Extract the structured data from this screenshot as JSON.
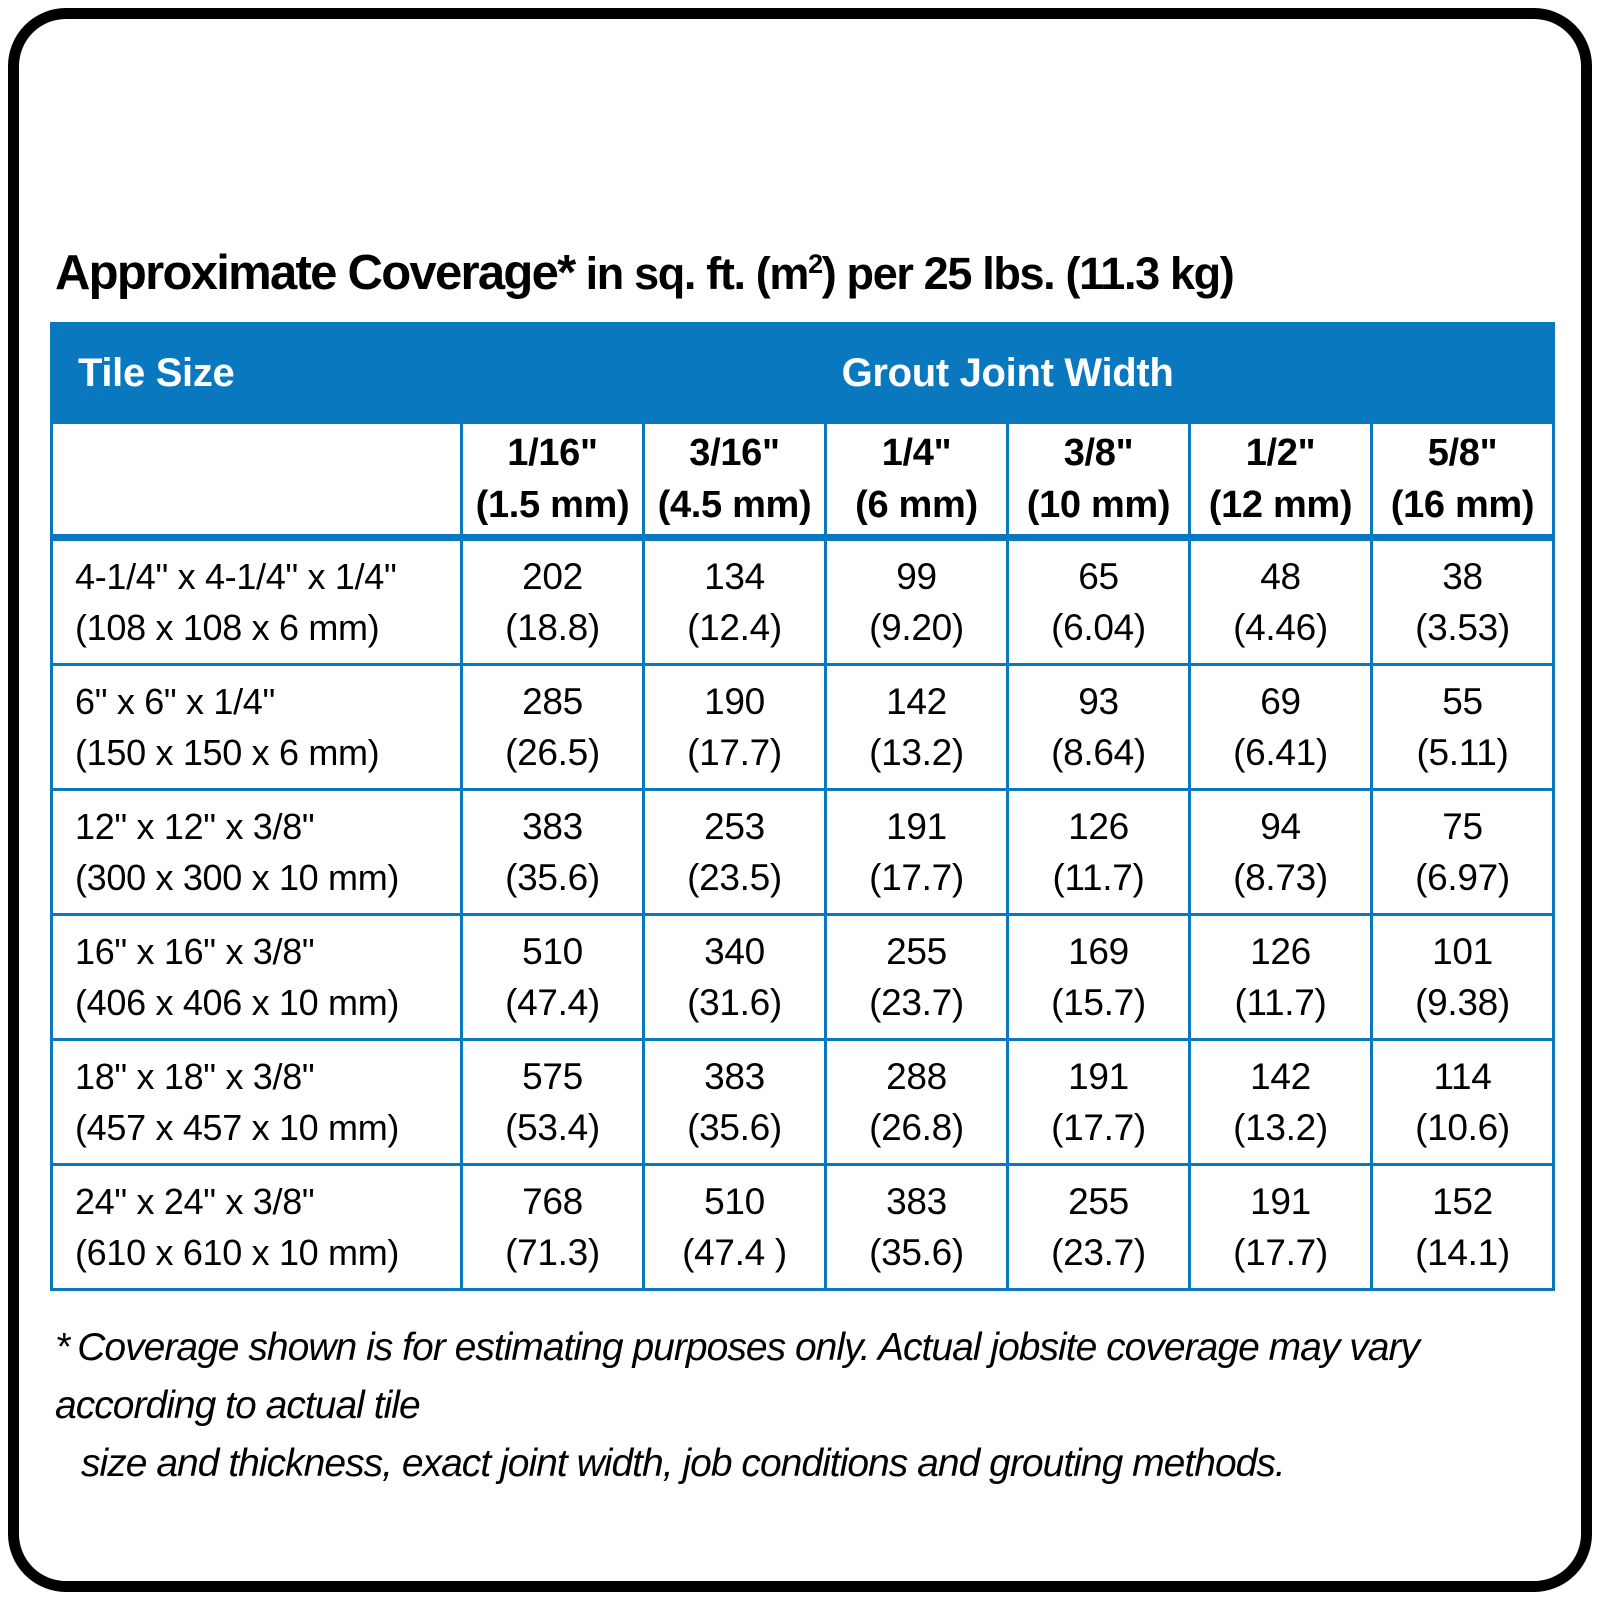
{
  "title": {
    "bold": "Approximate Coverage*",
    "mid": " in sq. ft. (m",
    "sup": "2",
    "tail": ") per 25 lbs. (11.3 kg)"
  },
  "colors": {
    "brand_blue": "#0a78bf",
    "frame_black": "#000000",
    "header_text": "#ffffff"
  },
  "table": {
    "band": {
      "tile_size": "Tile Size",
      "grout_joint_width": "Grout Joint Width"
    },
    "columns": [
      {
        "inch": "1/16\"",
        "mm": "(1.5 mm)"
      },
      {
        "inch": "3/16\"",
        "mm": "(4.5 mm)"
      },
      {
        "inch": "1/4\"",
        "mm": "(6 mm)"
      },
      {
        "inch": "3/8\"",
        "mm": "(10 mm)"
      },
      {
        "inch": "1/2\"",
        "mm": "(12 mm)"
      },
      {
        "inch": "5/8\"",
        "mm": "(16 mm)"
      }
    ],
    "rows": [
      {
        "size_in": "4-1/4\" x 4-1/4\" x 1/4\"",
        "size_mm": "(108 x 108 x 6 mm)",
        "values": [
          {
            "sqft": "202",
            "m2": "(18.8)"
          },
          {
            "sqft": "134",
            "m2": "(12.4)"
          },
          {
            "sqft": "99",
            "m2": "(9.20)"
          },
          {
            "sqft": "65",
            "m2": "(6.04)"
          },
          {
            "sqft": "48",
            "m2": "(4.46)"
          },
          {
            "sqft": "38",
            "m2": "(3.53)"
          }
        ]
      },
      {
        "size_in": "6\" x 6\" x 1/4\"",
        "size_mm": "(150 x 150 x 6 mm)",
        "values": [
          {
            "sqft": "285",
            "m2": "(26.5)"
          },
          {
            "sqft": "190",
            "m2": "(17.7)"
          },
          {
            "sqft": "142",
            "m2": "(13.2)"
          },
          {
            "sqft": "93",
            "m2": "(8.64)"
          },
          {
            "sqft": "69",
            "m2": "(6.41)"
          },
          {
            "sqft": "55",
            "m2": "(5.11)"
          }
        ]
      },
      {
        "size_in": "12\" x 12\" x 3/8\"",
        "size_mm": "(300 x 300 x 10 mm)",
        "values": [
          {
            "sqft": "383",
            "m2": "(35.6)"
          },
          {
            "sqft": "253",
            "m2": "(23.5)"
          },
          {
            "sqft": "191",
            "m2": "(17.7)"
          },
          {
            "sqft": "126",
            "m2": "(11.7)"
          },
          {
            "sqft": "94",
            "m2": "(8.73)"
          },
          {
            "sqft": "75",
            "m2": "(6.97)"
          }
        ]
      },
      {
        "size_in": "16\" x 16\" x 3/8\"",
        "size_mm": "(406 x 406 x 10 mm)",
        "values": [
          {
            "sqft": "510",
            "m2": "(47.4)"
          },
          {
            "sqft": "340",
            "m2": "(31.6)"
          },
          {
            "sqft": "255",
            "m2": "(23.7)"
          },
          {
            "sqft": "169",
            "m2": "(15.7)"
          },
          {
            "sqft": "126",
            "m2": "(11.7)"
          },
          {
            "sqft": "101",
            "m2": "(9.38)"
          }
        ]
      },
      {
        "size_in": "18\" x 18\" x 3/8\"",
        "size_mm": "(457 x 457 x 10 mm)",
        "values": [
          {
            "sqft": "575",
            "m2": "(53.4)"
          },
          {
            "sqft": "383",
            "m2": "(35.6)"
          },
          {
            "sqft": "288",
            "m2": "(26.8)"
          },
          {
            "sqft": "191",
            "m2": "(17.7)"
          },
          {
            "sqft": "142",
            "m2": "(13.2)"
          },
          {
            "sqft": "114",
            "m2": "(10.6)"
          }
        ]
      },
      {
        "size_in": "24\" x 24\" x 3/8\"",
        "size_mm": "(610 x 610 x 10 mm)",
        "values": [
          {
            "sqft": "768",
            "m2": "(71.3)"
          },
          {
            "sqft": "510",
            "m2": "(47.4 )"
          },
          {
            "sqft": "383",
            "m2": "(35.6)"
          },
          {
            "sqft": "255",
            "m2": "(23.7)"
          },
          {
            "sqft": "191",
            "m2": "(17.7)"
          },
          {
            "sqft": "152",
            "m2": "(14.1)"
          }
        ]
      }
    ]
  },
  "footnote": {
    "marker": "*",
    "line1": "Coverage shown is for estimating purposes only. Actual jobsite coverage may vary according to actual tile",
    "line2": "size and thickness, exact joint width, job conditions and grouting methods."
  }
}
